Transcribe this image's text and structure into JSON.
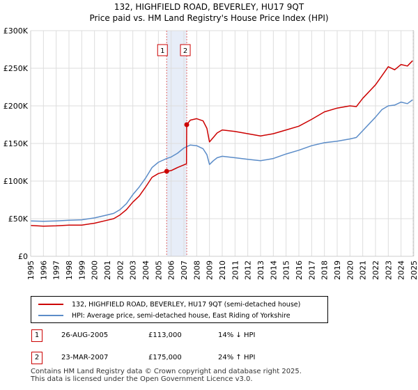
{
  "title": "132, HIGHFIELD ROAD, BEVERLEY, HU17 9QT",
  "subtitle": "Price paid vs. HM Land Registry's House Price Index (HPI)",
  "chart_data": {
    "type": "line",
    "xlim": [
      1995,
      2025
    ],
    "ylim": [
      0,
      300000
    ],
    "yticks": [
      0,
      50000,
      100000,
      150000,
      200000,
      250000,
      300000
    ],
    "ytick_labels": [
      "£0",
      "£50K",
      "£100K",
      "£150K",
      "£200K",
      "£250K",
      "£300K"
    ],
    "xticks": [
      1995,
      1996,
      1997,
      1998,
      1999,
      2000,
      2001,
      2002,
      2003,
      2004,
      2005,
      2006,
      2007,
      2008,
      2009,
      2010,
      2011,
      2012,
      2013,
      2014,
      2015,
      2016,
      2017,
      2018,
      2019,
      2020,
      2021,
      2022,
      2023,
      2024,
      2025
    ],
    "grid": true,
    "shaded_period": [
      2005.65,
      2007.22
    ],
    "series": [
      {
        "name": "132, HIGHFIELD ROAD, BEVERLEY, HU17 9QT (semi-detached house)",
        "color": "#cc0000",
        "x": [
          1995,
          1996,
          1997,
          1998,
          1999,
          2000,
          2001,
          2001.5,
          2002,
          2002.5,
          2003,
          2003.5,
          2004,
          2004.5,
          2005,
          2005.65,
          2006,
          2006.5,
          2007.2,
          2007.22,
          2007.5,
          2008,
          2008.5,
          2008.8,
          2009,
          2009.3,
          2009.6,
          2010,
          2011,
          2012,
          2013,
          2014,
          2015,
          2016,
          2017,
          2018,
          2019,
          2020,
          2020.5,
          2021,
          2022,
          2022.5,
          2023,
          2023.5,
          2024,
          2024.5,
          2024.9
        ],
        "y": [
          41000,
          40000,
          40500,
          41500,
          41500,
          44000,
          48000,
          50000,
          55000,
          62000,
          72000,
          80000,
          92000,
          105000,
          110000,
          113000,
          114000,
          118000,
          123000,
          175000,
          181000,
          183000,
          180000,
          170000,
          152000,
          158000,
          164000,
          168000,
          166000,
          163000,
          160000,
          163000,
          168000,
          173000,
          182000,
          192000,
          197000,
          200000,
          199000,
          210000,
          228000,
          240000,
          252000,
          248000,
          255000,
          253000,
          260000
        ]
      },
      {
        "name": "HPI: Average price, semi-detached house, East Riding of Yorkshire",
        "color": "#5b8cc8",
        "x": [
          1995,
          1996,
          1997,
          1998,
          1999,
          2000,
          2001,
          2001.5,
          2002,
          2002.5,
          2003,
          2003.5,
          2004,
          2004.5,
          2005,
          2005.65,
          2006,
          2006.5,
          2007,
          2007.5,
          2008,
          2008.5,
          2008.8,
          2009,
          2009.3,
          2009.6,
          2010,
          2011,
          2012,
          2013,
          2014,
          2015,
          2016,
          2017,
          2018,
          2019,
          2020,
          2020.5,
          2021,
          2022,
          2022.5,
          2023,
          2023.5,
          2024,
          2024.5,
          2024.9
        ],
        "y": [
          47000,
          46500,
          47000,
          48000,
          48500,
          51000,
          55000,
          57000,
          62000,
          70000,
          82000,
          92000,
          104000,
          118000,
          125000,
          130000,
          132000,
          137000,
          144000,
          148000,
          147000,
          143000,
          135000,
          122000,
          127000,
          131000,
          133000,
          131000,
          129000,
          127000,
          130000,
          136000,
          141000,
          147000,
          151000,
          153000,
          156000,
          158000,
          167000,
          185000,
          195000,
          200000,
          201000,
          205000,
          203000,
          208000
        ]
      }
    ],
    "markers": [
      {
        "label": "1",
        "x": 2005.65,
        "y": 113000
      },
      {
        "label": "2",
        "x": 2007.22,
        "y": 175000
      }
    ]
  },
  "legend": {
    "property": "132, HIGHFIELD ROAD, BEVERLEY, HU17 9QT (semi-detached house)",
    "hpi": "HPI: Average price, semi-detached house, East Riding of Yorkshire"
  },
  "transactions": [
    {
      "num": "1",
      "date": "26-AUG-2005",
      "price": "£113,000",
      "hpi": "14% ↓ HPI"
    },
    {
      "num": "2",
      "date": "23-MAR-2007",
      "price": "£175,000",
      "hpi": "24% ↑ HPI"
    }
  ],
  "footer": {
    "line1": "Contains HM Land Registry data © Crown copyright and database right 2025.",
    "line2": "This data is licensed under the Open Government Licence v3.0."
  }
}
